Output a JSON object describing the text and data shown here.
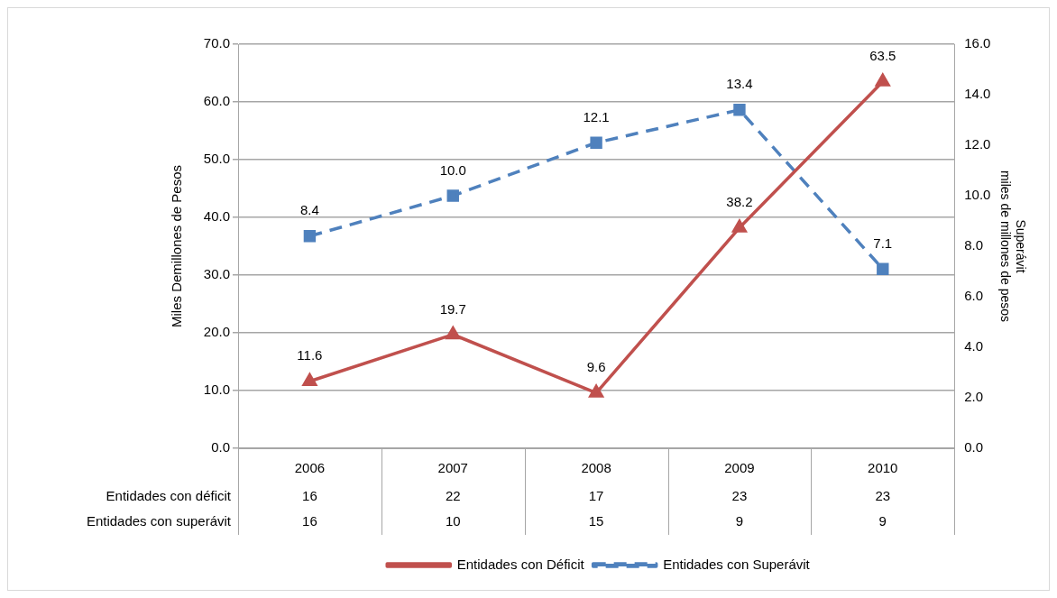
{
  "chart_data": {
    "type": "line",
    "categories": [
      "2006",
      "2007",
      "2008",
      "2009",
      "2010"
    ],
    "ylabel": "Miles Demillones de Pesos",
    "y2label": "Superávit\nmiles de millones de pesos",
    "series": [
      {
        "name": "Entidades con Déficit",
        "color": "#c0504d",
        "values": [
          11.6,
          19.7,
          9.6,
          38.2,
          63.5
        ],
        "value_labels": [
          "11.6",
          "19.7",
          "9.6",
          "38.2",
          "63.5"
        ],
        "marker": "triangle",
        "line_style": "solid"
      },
      {
        "name": "Entidades con Superávit",
        "color": "#4f81bd",
        "values": [
          8.4,
          10.0,
          12.1,
          13.4,
          7.1
        ],
        "value_labels": [
          "8.4",
          "10.0",
          "12.1",
          "13.4",
          "7.1"
        ],
        "marker": "square",
        "line_style": "dashed",
        "axis": "y2"
      }
    ],
    "ylim": [
      0,
      70
    ],
    "yticks": [
      {
        "value": 0,
        "label": "0.0"
      },
      {
        "value": 10,
        "label": "10.0"
      },
      {
        "value": 20,
        "label": "20.0"
      },
      {
        "value": 30,
        "label": "30.0"
      },
      {
        "value": 40,
        "label": "40.0"
      },
      {
        "value": 50,
        "label": "50.0"
      },
      {
        "value": 60,
        "label": "60.0"
      },
      {
        "value": 70,
        "label": "70.0"
      }
    ],
    "y2lim": [
      0,
      16
    ],
    "y2ticks": [
      {
        "value": 0,
        "label": "0.0"
      },
      {
        "value": 2,
        "label": "2.0"
      },
      {
        "value": 4,
        "label": "4.0"
      },
      {
        "value": 6,
        "label": "6.0"
      },
      {
        "value": 8,
        "label": "8.0"
      },
      {
        "value": 10,
        "label": "10.0"
      },
      {
        "value": 12,
        "label": "12.0"
      },
      {
        "value": 14,
        "label": "14.0"
      },
      {
        "value": 16,
        "label": "16.0"
      }
    ],
    "annotations": [
      "Entidades con déficit",
      "16",
      "22",
      "17",
      "23",
      "23",
      "Entidades con superávit",
      "16",
      "10",
      "15",
      "9",
      "9"
    ],
    "grid": "y",
    "legend": "bottom"
  }
}
